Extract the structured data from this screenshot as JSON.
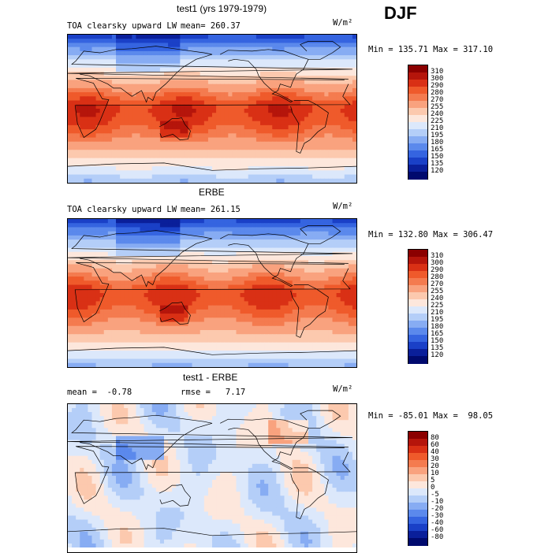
{
  "season": "DJF",
  "units_label": "W/m²",
  "chart_data": [
    {
      "type": "heatmap",
      "title": "test1 (yrs 1979-1979)",
      "variable_label": "TOA clearsky upward LW",
      "mean_text": "mean= 260.37",
      "minmax_text": "Min = 135.71 Max = 317.10",
      "min": 135.71,
      "max": 317.1,
      "mean": 260.37,
      "colorbar_levels": [
        "310",
        "300",
        "290",
        "280",
        "270",
        "255",
        "240",
        "225",
        "210",
        "195",
        "180",
        "165",
        "150",
        "135",
        "120"
      ],
      "colorbar_colors": [
        "#8b0000",
        "#b5150b",
        "#d93015",
        "#ef5a2b",
        "#f47b4f",
        "#f9a27e",
        "#fcc9ae",
        "#fde7dc",
        "#dce8fb",
        "#b4cef8",
        "#87acf3",
        "#5b89ec",
        "#3564e0",
        "#1a40c7",
        "#0a1f9a",
        "#000a6e"
      ],
      "projection": "global cylindrical equidistant"
    },
    {
      "type": "heatmap",
      "title": "ERBE",
      "variable_label": "TOA clearsky upward LW",
      "mean_text": "mean= 261.15",
      "minmax_text": "Min = 132.80 Max = 306.47",
      "min": 132.8,
      "max": 306.47,
      "mean": 261.15,
      "colorbar_levels": [
        "310",
        "300",
        "290",
        "280",
        "270",
        "255",
        "240",
        "225",
        "210",
        "195",
        "180",
        "165",
        "150",
        "135",
        "120"
      ],
      "colorbar_colors": [
        "#8b0000",
        "#b5150b",
        "#d93015",
        "#ef5a2b",
        "#f47b4f",
        "#f9a27e",
        "#fcc9ae",
        "#fde7dc",
        "#dce8fb",
        "#b4cef8",
        "#87acf3",
        "#5b89ec",
        "#3564e0",
        "#1a40c7",
        "#0a1f9a",
        "#000a6e"
      ],
      "projection": "global cylindrical equidistant"
    },
    {
      "type": "heatmap",
      "title": "test1 - ERBE",
      "mean_text": "mean =  -0.78",
      "rmse_text": "rmse =   7.17",
      "minmax_text": "Min = -85.01 Max =  98.05",
      "min": -85.01,
      "max": 98.05,
      "mean": -0.78,
      "rmse": 7.17,
      "colorbar_levels": [
        "80",
        "60",
        "40",
        "30",
        "20",
        "10",
        "5",
        "0",
        "-5",
        "-10",
        "-20",
        "-30",
        "-40",
        "-60",
        "-80"
      ],
      "colorbar_colors": [
        "#8b0000",
        "#b5150b",
        "#d93015",
        "#ef5a2b",
        "#f47b4f",
        "#f9a27e",
        "#fcc9ae",
        "#fde7dc",
        "#dce8fb",
        "#b4cef8",
        "#87acf3",
        "#5b89ec",
        "#3564e0",
        "#1a40c7",
        "#0a1f9a",
        "#000a6e"
      ],
      "projection": "global cylindrical equidistant"
    }
  ]
}
